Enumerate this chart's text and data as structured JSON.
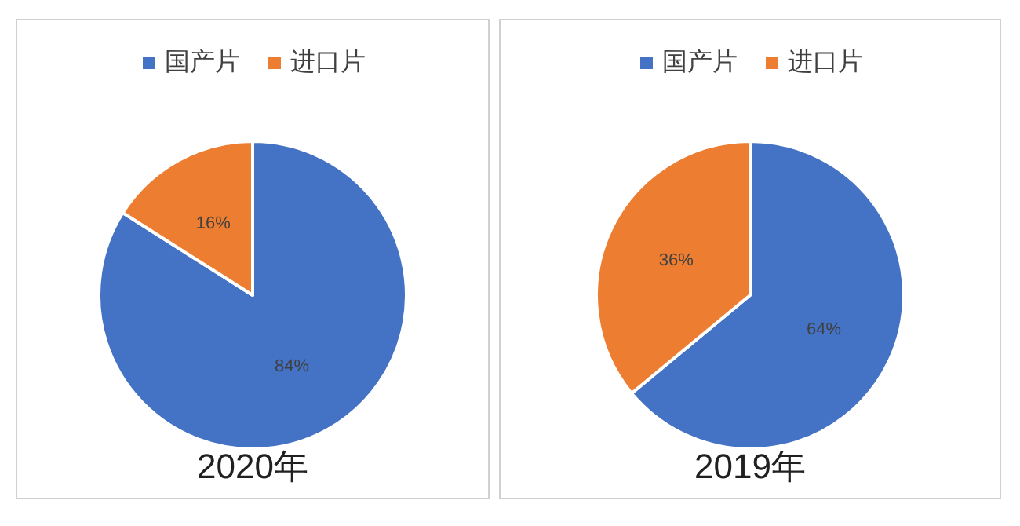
{
  "chart_data": [
    {
      "type": "pie",
      "title": "2020年",
      "categories": [
        "国产片",
        "进口片"
      ],
      "values": [
        84,
        16
      ],
      "colors": [
        "#4472c4",
        "#ed7d31"
      ],
      "value_labels": [
        "84%",
        "16%"
      ],
      "legend": "top"
    },
    {
      "type": "pie",
      "title": "2019年",
      "categories": [
        "国产片",
        "进口片"
      ],
      "values": [
        64,
        36
      ],
      "colors": [
        "#4472c4",
        "#ed7d31"
      ],
      "value_labels": [
        "64%",
        "36%"
      ],
      "legend": "top"
    }
  ]
}
